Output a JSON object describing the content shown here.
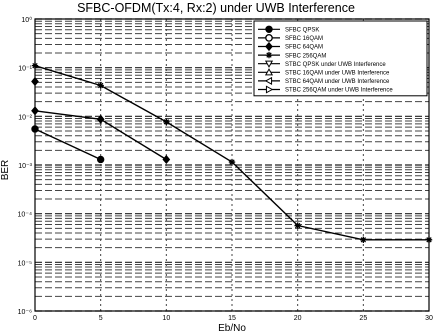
{
  "chart_data": {
    "type": "line",
    "title": "SFBC-OFDM(Tx:4, Rx:2) under UWB Interference",
    "xlabel": "Eb/No",
    "ylabel": "BER",
    "xlim": [
      0,
      30
    ],
    "ylim": [
      1e-06,
      1
    ],
    "yscale": "log",
    "grid": true,
    "legend_position": "top-right",
    "x_ticks": [
      0,
      5,
      10,
      15,
      20,
      25,
      30
    ],
    "x_tick_labels": [
      "0",
      "5",
      "10",
      "15",
      "20",
      "25",
      "30"
    ],
    "y_ticks": [
      1,
      0.1,
      0.01,
      0.001,
      0.0001,
      1e-05,
      1e-06
    ],
    "y_tick_labels": [
      "10⁰",
      "10⁻¹",
      "10⁻²",
      "10⁻³",
      "10⁻⁴",
      "10⁻⁵",
      "10⁻⁶"
    ],
    "series": [
      {
        "name": "SFBC QPSK",
        "marker": "circle",
        "x": [
          0,
          5
        ],
        "y": [
          0.0055,
          0.0013
        ]
      },
      {
        "name": "SFBC 16QAM",
        "marker": "circle-open",
        "x": [],
        "y": []
      },
      {
        "name": "SFBC 64QAM",
        "marker": "diamond",
        "x": [
          0,
          5,
          10
        ],
        "y": [
          0.013,
          0.0087,
          0.0013
        ]
      },
      {
        "name": "SFBC 256QAM",
        "marker": "star",
        "x": [
          0,
          5,
          10,
          15,
          20,
          25,
          30
        ],
        "y": [
          0.11,
          0.043,
          0.0077,
          0.00115,
          5.7e-05,
          2.9e-05,
          2.9e-05
        ]
      },
      {
        "name": "STBC QPSK under UWB Interference",
        "marker": "triangle-down",
        "x": [],
        "y": []
      },
      {
        "name": "STBC 16QAM under UWB Interference",
        "marker": "triangle-up",
        "x": [],
        "y": []
      },
      {
        "name": "STBC 64QAM under UWB Interference",
        "marker": "triangle-left",
        "x": [],
        "y": []
      },
      {
        "name": "STBC 256QAM under UWB Interference",
        "marker": "triangle-right",
        "x": [],
        "y": []
      }
    ],
    "extra_points": [
      {
        "marker": "diamond",
        "x": 0,
        "y": 0.052
      }
    ]
  }
}
